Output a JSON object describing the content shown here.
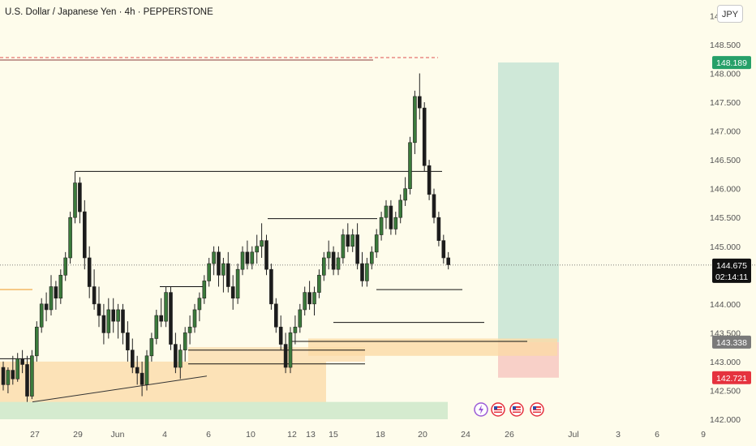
{
  "header": {
    "title": "U.S. Dollar / Japanese Yen · 4h · PEPPERSTONE",
    "currency": "JPY"
  },
  "colors": {
    "background": "#FEFCEB",
    "candle_up": "#3B7A3B",
    "candle_down": "#1C1C1C",
    "target_zone": "#CFE8D8",
    "stop_zone": "#F8D0C8",
    "supply_demand_zone": "#FBD9A6",
    "green_zone": "#D5EBCF",
    "dashed_line": "#E05252",
    "target_tag": "#26A069",
    "stop_tag": "#E5323E",
    "entry_tag": "#7A7A7A",
    "last_price_tag": "#111111"
  },
  "price_tags": {
    "target": "148.189",
    "last": "144.675",
    "countdown": "02:14:11",
    "entry": "143.338",
    "stop": "142.721"
  },
  "chart_data": {
    "type": "candlestick",
    "title": "U.S. Dollar / Japanese Yen · 4h · PEPPERSTONE",
    "ylim": [
      142.0,
      149.4
    ],
    "y_ticks": [
      "149.000",
      "148.500",
      "148.000",
      "147.500",
      "147.000",
      "146.500",
      "146.000",
      "145.500",
      "145.000",
      "144.000",
      "143.500",
      "143.000",
      "142.500",
      "142.000"
    ],
    "x_ticks": [
      "27",
      "29",
      "Jun",
      "4",
      "6",
      "10",
      "12",
      "13",
      "15",
      "18",
      "20",
      "24",
      "26",
      "Jul",
      "3",
      "6",
      "9"
    ],
    "candles": [
      [
        142.9,
        143.0,
        142.5,
        142.6
      ],
      [
        142.6,
        142.9,
        142.45,
        142.85
      ],
      [
        142.85,
        143.1,
        142.6,
        142.7
      ],
      [
        142.7,
        143.15,
        142.65,
        143.05
      ],
      [
        143.05,
        143.2,
        142.8,
        142.95
      ],
      [
        142.95,
        143.1,
        142.3,
        142.4
      ],
      [
        142.4,
        143.2,
        142.35,
        143.1
      ],
      [
        143.1,
        143.7,
        143.0,
        143.6
      ],
      [
        143.6,
        144.1,
        143.5,
        144.0
      ],
      [
        144.0,
        144.2,
        143.7,
        143.9
      ],
      [
        143.9,
        144.5,
        143.8,
        144.3
      ],
      [
        144.3,
        144.4,
        143.9,
        144.1
      ],
      [
        144.1,
        144.6,
        144.0,
        144.5
      ],
      [
        144.5,
        144.9,
        144.4,
        144.8
      ],
      [
        144.8,
        145.6,
        144.7,
        145.5
      ],
      [
        145.5,
        146.3,
        145.4,
        146.1
      ],
      [
        146.1,
        146.2,
        145.4,
        145.6
      ],
      [
        145.6,
        145.8,
        144.6,
        144.8
      ],
      [
        144.8,
        145.0,
        144.1,
        144.3
      ],
      [
        144.3,
        144.6,
        143.9,
        144.0
      ],
      [
        144.0,
        144.3,
        143.6,
        143.8
      ],
      [
        143.8,
        144.0,
        143.3,
        143.5
      ],
      [
        143.5,
        144.1,
        143.4,
        143.9
      ],
      [
        143.9,
        144.1,
        143.5,
        143.7
      ],
      [
        143.7,
        144.0,
        143.4,
        143.9
      ],
      [
        143.9,
        144.0,
        143.3,
        143.5
      ],
      [
        143.5,
        143.7,
        143.0,
        143.2
      ],
      [
        143.2,
        143.4,
        142.8,
        142.9
      ],
      [
        142.9,
        143.1,
        142.6,
        142.8
      ],
      [
        142.8,
        143.0,
        142.4,
        142.6
      ],
      [
        142.6,
        143.2,
        142.5,
        143.1
      ],
      [
        143.1,
        143.5,
        143.0,
        143.4
      ],
      [
        143.4,
        143.9,
        143.3,
        143.8
      ],
      [
        143.8,
        144.1,
        143.6,
        143.7
      ],
      [
        143.7,
        144.3,
        143.6,
        144.2
      ],
      [
        144.2,
        144.3,
        143.2,
        143.3
      ],
      [
        143.3,
        143.5,
        142.8,
        142.9
      ],
      [
        142.9,
        143.3,
        142.7,
        143.2
      ],
      [
        143.2,
        143.6,
        143.0,
        143.5
      ],
      [
        143.5,
        143.8,
        143.3,
        143.6
      ],
      [
        143.6,
        144.0,
        143.5,
        143.9
      ],
      [
        143.9,
        144.2,
        143.7,
        144.1
      ],
      [
        144.1,
        144.5,
        144.0,
        144.4
      ],
      [
        144.4,
        144.8,
        144.3,
        144.7
      ],
      [
        144.7,
        145.0,
        144.5,
        144.9
      ],
      [
        144.9,
        145.0,
        144.3,
        144.5
      ],
      [
        144.5,
        144.8,
        144.2,
        144.7
      ],
      [
        144.7,
        144.9,
        144.2,
        144.3
      ],
      [
        144.3,
        144.5,
        143.9,
        144.1
      ],
      [
        144.1,
        144.7,
        144.0,
        144.6
      ],
      [
        144.6,
        145.0,
        144.5,
        144.9
      ],
      [
        144.9,
        145.1,
        144.6,
        144.7
      ],
      [
        144.7,
        145.0,
        144.6,
        144.9
      ],
      [
        144.9,
        145.2,
        144.7,
        145.0
      ],
      [
        145.0,
        145.4,
        144.8,
        145.1
      ],
      [
        145.1,
        145.2,
        144.5,
        144.6
      ],
      [
        144.6,
        144.7,
        143.9,
        144.0
      ],
      [
        144.0,
        144.1,
        143.5,
        143.6
      ],
      [
        143.6,
        143.8,
        143.2,
        143.3
      ],
      [
        143.3,
        143.5,
        142.8,
        142.9
      ],
      [
        142.9,
        143.6,
        142.8,
        143.5
      ],
      [
        143.5,
        143.8,
        143.3,
        143.6
      ],
      [
        143.6,
        144.0,
        143.5,
        143.9
      ],
      [
        143.9,
        144.3,
        143.8,
        144.2
      ],
      [
        144.2,
        144.4,
        143.9,
        144.0
      ],
      [
        144.0,
        144.3,
        143.8,
        144.2
      ],
      [
        144.2,
        144.6,
        144.1,
        144.5
      ],
      [
        144.5,
        144.9,
        144.4,
        144.8
      ],
      [
        144.8,
        145.1,
        144.6,
        144.9
      ],
      [
        144.9,
        145.0,
        144.5,
        144.6
      ],
      [
        144.6,
        144.9,
        144.5,
        144.8
      ],
      [
        144.8,
        145.3,
        144.7,
        145.2
      ],
      [
        145.2,
        145.4,
        144.9,
        145.0
      ],
      [
        145.0,
        145.3,
        144.9,
        145.2
      ],
      [
        145.2,
        145.4,
        144.6,
        144.7
      ],
      [
        144.7,
        144.9,
        144.3,
        144.4
      ],
      [
        144.4,
        144.8,
        144.3,
        144.7
      ],
      [
        144.7,
        145.0,
        144.6,
        144.9
      ],
      [
        144.9,
        145.3,
        144.8,
        145.2
      ],
      [
        145.2,
        145.6,
        145.1,
        145.5
      ],
      [
        145.5,
        145.8,
        145.3,
        145.7
      ],
      [
        145.7,
        145.8,
        145.2,
        145.3
      ],
      [
        145.3,
        145.6,
        145.2,
        145.5
      ],
      [
        145.5,
        145.9,
        145.4,
        145.8
      ],
      [
        145.8,
        146.2,
        145.7,
        146.0
      ],
      [
        146.0,
        146.9,
        145.9,
        146.8
      ],
      [
        146.8,
        147.7,
        146.6,
        147.6
      ],
      [
        147.6,
        148.0,
        147.2,
        147.4
      ],
      [
        147.4,
        147.5,
        146.3,
        146.4
      ],
      [
        146.4,
        146.5,
        145.8,
        145.9
      ],
      [
        145.9,
        146.0,
        145.4,
        145.5
      ],
      [
        145.5,
        145.6,
        145.0,
        145.1
      ],
      [
        145.1,
        145.2,
        144.7,
        144.8
      ],
      [
        144.8,
        144.9,
        144.6,
        144.68
      ]
    ],
    "annotations": {
      "key_levels": [
        146.3,
        145.48,
        144.3,
        144.25,
        143.8,
        143.68,
        143.35,
        143.2,
        143.05,
        142.96
      ],
      "target_zone": [
        143.338,
        148.189
      ],
      "stop_zone": [
        142.721,
        143.338
      ],
      "entry": 143.338,
      "last_price": 144.675
    },
    "xlabel": "",
    "ylabel": "",
    "grid": false
  }
}
